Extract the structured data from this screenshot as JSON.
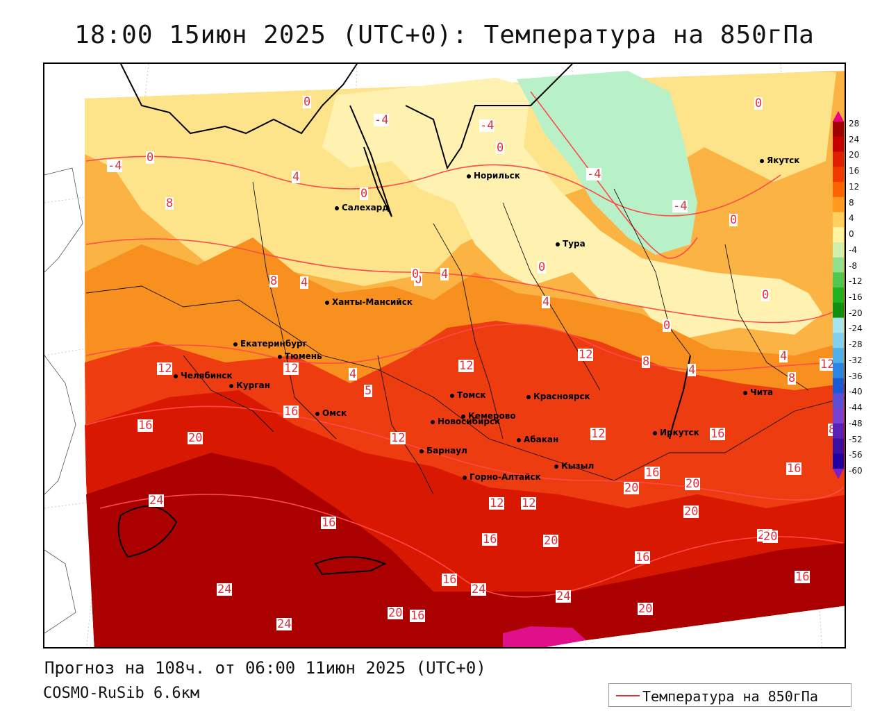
{
  "title": "18:00 15июн 2025 (UTC+0): Температура на 850гПа",
  "footer": {
    "forecast": "Прогноз на 108ч. от 06:00 11июн 2025 (UTC+0)",
    "model": "COSMO-RuSib 6.6км"
  },
  "legend": {
    "label": "Температура на 850гПа",
    "line_color": "#e0303a"
  },
  "cities": [
    {
      "name": "Якутск"
    },
    {
      "name": "Норильск"
    },
    {
      "name": "Салехард"
    },
    {
      "name": "Тура"
    },
    {
      "name": "Ханты-Мансийск"
    },
    {
      "name": "Екатеринбург"
    },
    {
      "name": "Тюмень"
    },
    {
      "name": "Челябинск"
    },
    {
      "name": "Курган"
    },
    {
      "name": "Омск"
    },
    {
      "name": "Новосибирск"
    },
    {
      "name": "Томск"
    },
    {
      "name": "Красноярск"
    },
    {
      "name": "Кемерово"
    },
    {
      "name": "Абакан"
    },
    {
      "name": "Барнаул"
    },
    {
      "name": "Кызыл"
    },
    {
      "name": "Горно-Алтайск"
    },
    {
      "name": "Иркутск"
    },
    {
      "name": "Чита"
    }
  ],
  "contour_labels": [
    "0",
    "-4",
    "-4",
    "0",
    "0",
    "-4",
    "0",
    "-4",
    "-4",
    "0",
    "4",
    "8",
    "0",
    "0",
    "4",
    "0",
    "8",
    "4",
    "4",
    "0",
    "0",
    "8",
    "4",
    "0",
    "8",
    "12",
    "12",
    "4",
    "5",
    "12",
    "12",
    "4",
    "12",
    "8",
    "16",
    "16",
    "20",
    "12",
    "12",
    "16",
    "16",
    "12",
    "24",
    "16",
    "16",
    "12",
    "20",
    "20",
    "16",
    "16",
    "20",
    "20",
    "20",
    "16",
    "20",
    "24",
    "24",
    "24",
    "20",
    "16",
    "24",
    "20",
    "16"
  ],
  "colorbar": {
    "ticks": [
      "28",
      "24",
      "20",
      "16",
      "12",
      "8",
      "4",
      "0",
      "-4",
      "-8",
      "-12",
      "-16",
      "-20",
      "-24",
      "-28",
      "-32",
      "-36",
      "-40",
      "-44",
      "-48",
      "-52",
      "-56",
      "-60"
    ],
    "colors": [
      "#a00000",
      "#c40000",
      "#e01e00",
      "#f23a00",
      "#ff6200",
      "#ff9a1e",
      "#ffd060",
      "#fff4a0",
      "#d0f0b0",
      "#90e090",
      "#50c850",
      "#20b020",
      "#109010",
      "#a8e4f0",
      "#80d0ee",
      "#50b0ea",
      "#2a86e4",
      "#1a5ad6",
      "#5a50d8",
      "#7a40d0",
      "#5a20b8",
      "#3a10a0",
      "#2000a0"
    ],
    "top_color": "#ee0080",
    "bottom_color": "#8020c0"
  },
  "field_colors": {
    "deep_red": "#aa0000",
    "red": "#d81800",
    "red_orange": "#ec3c10",
    "orange": "#f7901e",
    "light_orange": "#fbb443",
    "yellow": "#fde38a",
    "pale_yellow": "#fff2b0",
    "light_green": "#b8f0c8",
    "magenta": "#e0108a"
  }
}
